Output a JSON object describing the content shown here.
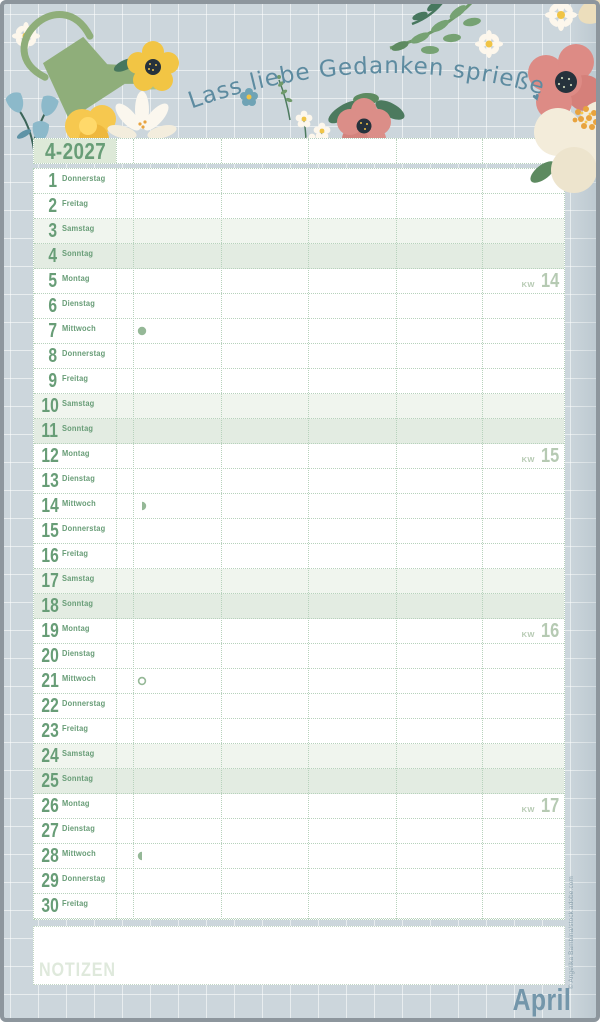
{
  "page": {
    "tagline": "Lass liebe Gedanken sprießen",
    "month_code": "4-2027",
    "month_name": "April",
    "notes_label": "NOTIZEN",
    "credit": "© Angelika Bambina/stock.adobe.com",
    "kw_prefix": "KW"
  },
  "calendar": {
    "days": [
      {
        "num": "1",
        "name": "Donnerstag",
        "type": "weekday"
      },
      {
        "num": "2",
        "name": "Freitag",
        "type": "weekday"
      },
      {
        "num": "3",
        "name": "Samstag",
        "type": "saturday"
      },
      {
        "num": "4",
        "name": "Sonntag",
        "type": "sunday"
      },
      {
        "num": "5",
        "name": "Montag",
        "type": "weekday",
        "kw": "14"
      },
      {
        "num": "6",
        "name": "Dienstag",
        "type": "weekday"
      },
      {
        "num": "7",
        "name": "Mittwoch",
        "type": "weekday",
        "moon": "new-moon"
      },
      {
        "num": "8",
        "name": "Donnerstag",
        "type": "weekday"
      },
      {
        "num": "9",
        "name": "Freitag",
        "type": "weekday"
      },
      {
        "num": "10",
        "name": "Samstag",
        "type": "saturday"
      },
      {
        "num": "11",
        "name": "Sonntag",
        "type": "sunday"
      },
      {
        "num": "12",
        "name": "Montag",
        "type": "weekday",
        "kw": "15"
      },
      {
        "num": "13",
        "name": "Dienstag",
        "type": "weekday"
      },
      {
        "num": "14",
        "name": "Mittwoch",
        "type": "weekday",
        "moon": "first-quarter"
      },
      {
        "num": "15",
        "name": "Donnerstag",
        "type": "weekday"
      },
      {
        "num": "16",
        "name": "Freitag",
        "type": "weekday"
      },
      {
        "num": "17",
        "name": "Samstag",
        "type": "saturday"
      },
      {
        "num": "18",
        "name": "Sonntag",
        "type": "sunday"
      },
      {
        "num": "19",
        "name": "Montag",
        "type": "weekday",
        "kw": "16"
      },
      {
        "num": "20",
        "name": "Dienstag",
        "type": "weekday"
      },
      {
        "num": "21",
        "name": "Mittwoch",
        "type": "weekday",
        "moon": "full-moon"
      },
      {
        "num": "22",
        "name": "Donnerstag",
        "type": "weekday"
      },
      {
        "num": "23",
        "name": "Freitag",
        "type": "weekday"
      },
      {
        "num": "24",
        "name": "Samstag",
        "type": "saturday"
      },
      {
        "num": "25",
        "name": "Sonntag",
        "type": "sunday"
      },
      {
        "num": "26",
        "name": "Montag",
        "type": "weekday",
        "kw": "17"
      },
      {
        "num": "27",
        "name": "Dienstag",
        "type": "weekday"
      },
      {
        "num": "28",
        "name": "Mittwoch",
        "type": "weekday",
        "moon": "last-quarter"
      },
      {
        "num": "29",
        "name": "Donnerstag",
        "type": "weekday"
      },
      {
        "num": "30",
        "name": "Freitag",
        "type": "weekday"
      }
    ]
  },
  "colors": {
    "accent_green": "#689d77",
    "weekend_saturday_bg": "#f0f5ee",
    "weekend_sunday_bg": "#e3ece2",
    "kw_label": "#b6cab3",
    "moon_symbol": "#95b897",
    "tagline_blue": "#5d8ba0",
    "month_blue": "#7396aa",
    "page_bg": "#ccd6dc"
  }
}
